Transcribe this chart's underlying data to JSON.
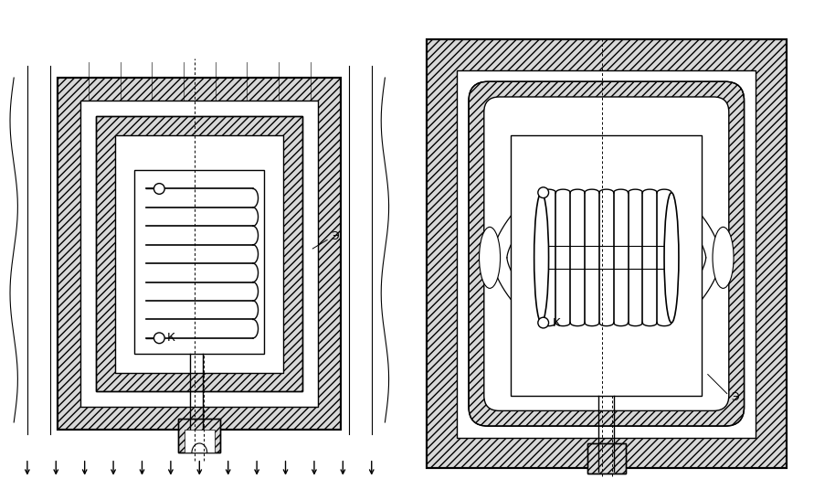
{
  "bg_color": "#ffffff",
  "lw": 1.0,
  "lw2": 1.5,
  "labels_K": "К",
  "labels_E": "Э",
  "fig_width": 8.91,
  "fig_height": 5.47
}
